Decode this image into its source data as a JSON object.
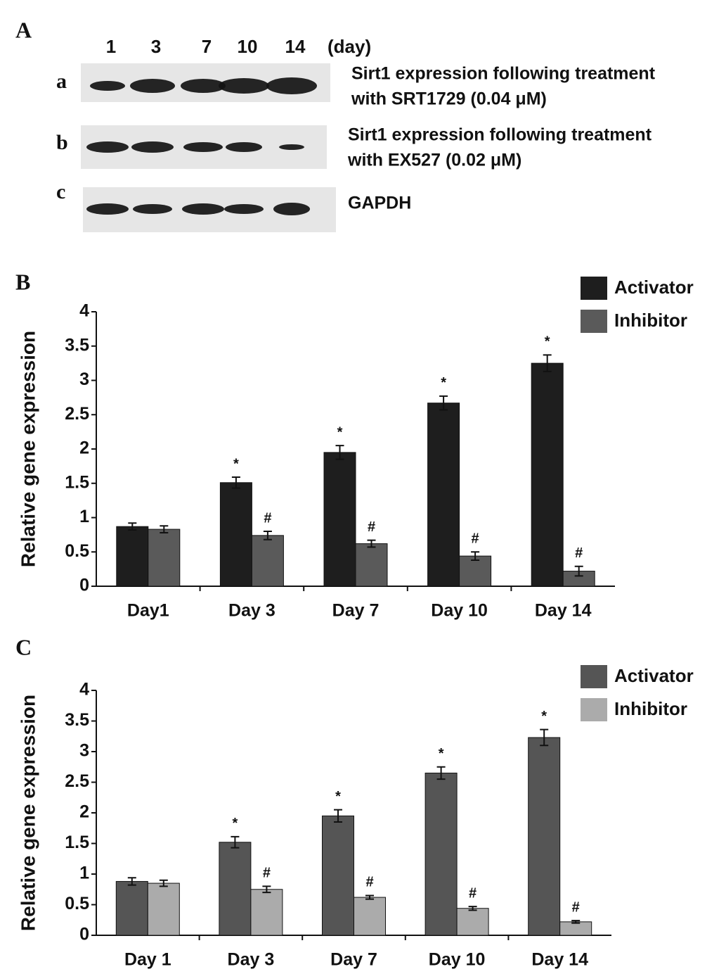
{
  "blot": {
    "panel": "A",
    "lanes": [
      "1",
      "3",
      "7",
      "10",
      "14"
    ],
    "unit": "(day)",
    "rows": [
      {
        "letter": "a",
        "label": [
          "Sirt1 expression following treatment",
          "with SRT1729 (0.04 μM)"
        ]
      },
      {
        "letter": "b",
        "label": [
          "Sirt1 expression following treatment",
          "with EX527 (0.02 μM)"
        ]
      },
      {
        "letter": "c",
        "label": [
          "GAPDH"
        ]
      }
    ]
  },
  "chart_data": [
    {
      "type": "bar",
      "panel": "B",
      "ylabel": "Relative gene expression",
      "categories": [
        "Day1",
        "Day 3",
        "Day 7",
        "Day 10",
        "Day 14"
      ],
      "series": [
        {
          "name": "Activator",
          "color": "#1e1e1e",
          "values": [
            0.87,
            1.51,
            1.95,
            2.67,
            3.25
          ],
          "errors": [
            0.05,
            0.08,
            0.1,
            0.1,
            0.12
          ],
          "labels": [
            null,
            "*",
            "*",
            "*",
            "*"
          ]
        },
        {
          "name": "Inhibitor",
          "color": "#5a5a5a",
          "values": [
            0.83,
            0.74,
            0.62,
            0.44,
            0.22
          ],
          "errors": [
            0.05,
            0.06,
            0.05,
            0.06,
            0.07
          ],
          "labels": [
            null,
            "#",
            "#",
            "#",
            "#"
          ]
        }
      ],
      "ylim": [
        0,
        4
      ],
      "yticks": [
        0,
        0.5,
        1,
        1.5,
        2,
        2.5,
        3,
        3.5,
        4
      ]
    },
    {
      "type": "bar",
      "panel": "C",
      "ylabel": "Relative gene expression",
      "categories": [
        "Day 1",
        "Day 3",
        "Day 7",
        "Day 10",
        "Day 14"
      ],
      "series": [
        {
          "name": "Activator",
          "color": "#555555",
          "values": [
            0.88,
            1.52,
            1.95,
            2.65,
            3.23
          ],
          "errors": [
            0.06,
            0.09,
            0.1,
            0.1,
            0.13
          ],
          "labels": [
            null,
            "*",
            "*",
            "*",
            "*"
          ]
        },
        {
          "name": "Inhibitor",
          "color": "#ababab",
          "values": [
            0.85,
            0.75,
            0.62,
            0.44,
            0.22
          ],
          "errors": [
            0.05,
            0.05,
            0.03,
            0.03,
            0.02
          ],
          "labels": [
            null,
            "#",
            "#",
            "#",
            "#"
          ]
        }
      ],
      "ylim": [
        0,
        4
      ],
      "yticks": [
        0,
        0.5,
        1,
        1.5,
        2,
        2.5,
        3,
        3.5,
        4
      ]
    }
  ]
}
